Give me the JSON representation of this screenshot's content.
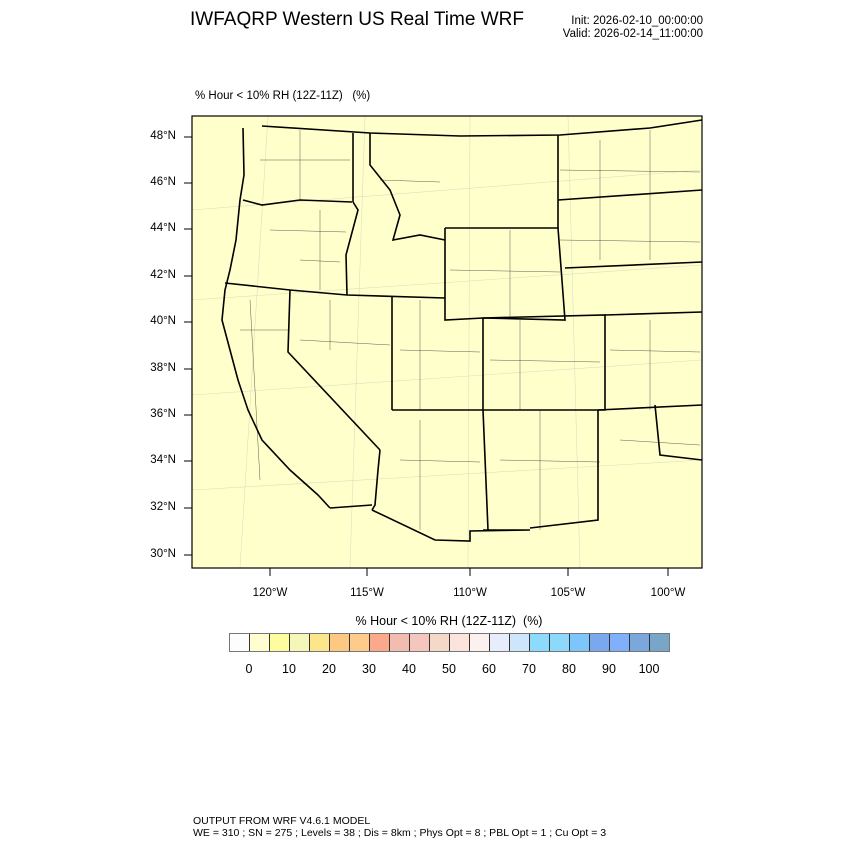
{
  "header": {
    "title": "IWFAQRP Western US Real Time WRF",
    "init": "Init: 2026-02-10_00:00:00",
    "valid": "Valid: 2026-02-14_11:00:00"
  },
  "map": {
    "field_label": "% Hour < 10% RH (12Z-11Z)   (%)",
    "fill_color": "#ffffcc",
    "lat_labels": [
      "48°N",
      "46°N",
      "44°N",
      "42°N",
      "40°N",
      "38°N",
      "36°N",
      "34°N",
      "32°N",
      "30°N"
    ],
    "lon_labels": [
      "120°W",
      "115°W",
      "110°W",
      "105°W",
      "100°W"
    ]
  },
  "colorbar": {
    "title": "% Hour < 10% RH (12Z-11Z)  (%)",
    "labels": [
      "0",
      "10",
      "20",
      "30",
      "40",
      "50",
      "60",
      "70",
      "80",
      "90",
      "100"
    ],
    "colors": [
      "#fdfdfd",
      "#fefed0",
      "#fdfda0",
      "#f5f7b8",
      "#fde68a",
      "#fdc982",
      "#fdcc8a",
      "#fba98a",
      "#f3bcb0",
      "#f4c6bd",
      "#f4d9c8",
      "#fce3db",
      "#fdf1ef",
      "#e8edfd",
      "#cde6fb",
      "#8cdafc",
      "#8cd9fb",
      "#7cc6fb",
      "#7aa8ef",
      "#80b0fc",
      "#7aa8dc",
      "#78a5c8"
    ]
  },
  "footer": {
    "line1": "OUTPUT FROM WRF V4.6.1 MODEL",
    "line2": "WE = 310 ; SN = 275 ; Levels = 38 ; Dis = 8km ; Phys Opt = 8 ; PBL Opt = 1 ; Cu Opt = 3"
  }
}
